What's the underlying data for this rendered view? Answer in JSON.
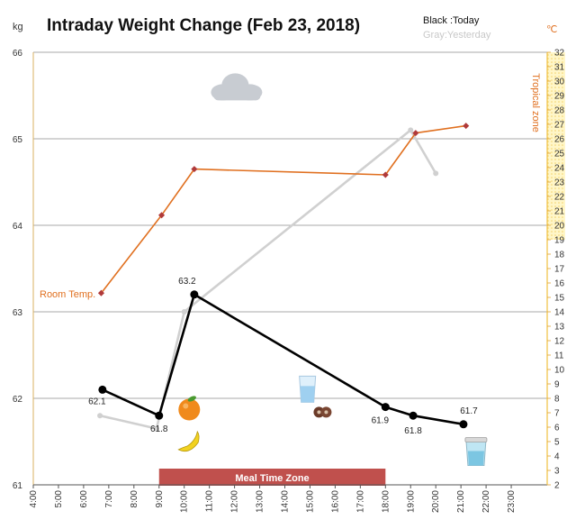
{
  "chart_data": {
    "type": "line",
    "title": "Intraday Weight Change (Feb 23, 2018)",
    "left_unit": "kg",
    "right_unit": "℃",
    "legend": {
      "today": "Black :Today",
      "yesterday": "Gray:Yesterday"
    },
    "x_ticks": [
      "4:00",
      "5:00",
      "6:00",
      "7:00",
      "8:00",
      "9:00",
      "10:00",
      "11:00",
      "12:00",
      "13:00",
      "14:00",
      "15:00",
      "16:00",
      "17:00",
      "18:00",
      "19:00",
      "20:00",
      "21:00",
      "22:00",
      "23:00"
    ],
    "xlim": [
      4,
      24
    ],
    "ylim": [
      61,
      66
    ],
    "y_ticks": [
      61,
      62,
      63,
      64,
      65,
      66
    ],
    "y2lim": [
      2,
      32
    ],
    "y2_ticks": [
      2,
      3,
      4,
      5,
      6,
      7,
      8,
      9,
      10,
      11,
      12,
      13,
      14,
      15,
      16,
      17,
      18,
      19,
      20,
      21,
      22,
      23,
      24,
      25,
      26,
      27,
      28,
      29,
      30,
      31,
      32
    ],
    "series": [
      {
        "key": "today",
        "name": "Today",
        "color": "#000000",
        "x": [
          6.75,
          9.0,
          10.4,
          18.0,
          19.1,
          21.1
        ],
        "y": [
          62.1,
          61.8,
          63.2,
          61.9,
          61.8,
          61.7
        ],
        "labels": [
          "62.1",
          "61.8",
          "63.2",
          "61.9",
          "61.8",
          "61.7"
        ]
      },
      {
        "key": "yesterday",
        "name": "Yesterday",
        "color": "#d0d0d0",
        "x": [
          6.65,
          8.9,
          10.0,
          19.0,
          20.0
        ],
        "y": [
          61.8,
          61.65,
          63.0,
          65.1,
          64.6
        ]
      },
      {
        "key": "temperature",
        "name": "Room Temp.",
        "color": "#e07020",
        "axis": "right",
        "x": [
          6.7,
          9.1,
          10.4,
          18.0,
          19.2,
          21.2
        ],
        "y": [
          15.3,
          20.7,
          23.9,
          23.5,
          26.4,
          26.9
        ]
      }
    ],
    "annotations": {
      "room_temp": "Room Temp.",
      "tropical_zone": "Tropical zone",
      "tropical_zone_range": [
        19,
        32
      ],
      "meal_time_zone": "Meal Time Zone",
      "meal_time_range": [
        9.0,
        18.0
      ]
    },
    "icons": [
      {
        "name": "cloud-icon",
        "x": 12.1,
        "y": 65.6
      },
      {
        "name": "orange-icon",
        "x": 10.2,
        "y": 61.87
      },
      {
        "name": "banana-icon",
        "x": 10.2,
        "y": 61.47
      },
      {
        "name": "water-glass-icon",
        "x": 14.9,
        "y": 62.1
      },
      {
        "name": "cookies-icon",
        "x": 15.5,
        "y": 61.84
      },
      {
        "name": "cup-icon",
        "x": 21.6,
        "y": 61.37
      }
    ],
    "grid": true
  }
}
